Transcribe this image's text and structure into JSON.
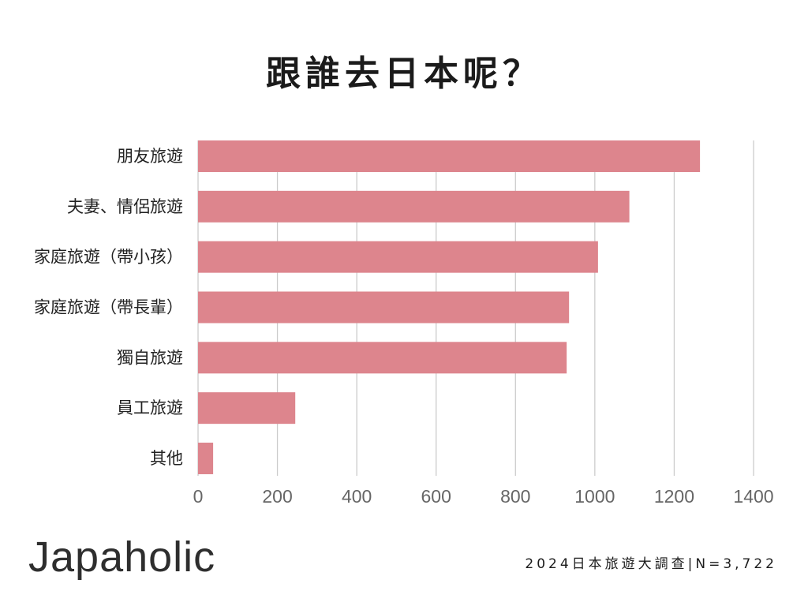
{
  "footer": {
    "brand": "Japaholic",
    "source": "2024日本旅遊大調查|N=3,722"
  },
  "colors": {
    "bar": "#dd858d",
    "grid": "#cccccc",
    "text": "#1b1b1b"
  },
  "chart_data": {
    "type": "bar",
    "orientation": "horizontal",
    "title": "跟誰去日本呢？",
    "categories": [
      "朋友旅遊",
      "夫妻、情侶旅遊",
      "家庭旅遊（帶小孩）",
      "家庭旅遊（帶長輩）",
      "獨自旅遊",
      "員工旅遊",
      "其他"
    ],
    "values": [
      1265,
      1087,
      1008,
      935,
      929,
      245,
      38
    ],
    "xlim": [
      0,
      1400
    ],
    "xticks": [
      0,
      200,
      400,
      600,
      800,
      1000,
      1200,
      1400
    ],
    "grid": true,
    "legend": "none"
  }
}
